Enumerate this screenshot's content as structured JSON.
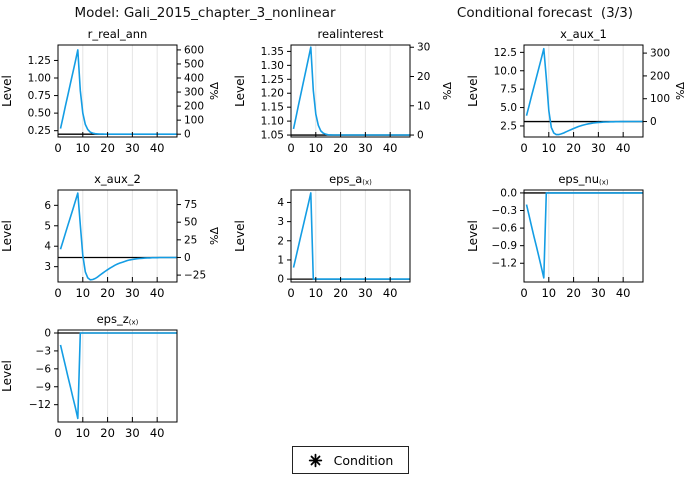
{
  "header": {
    "model_title": "Model: Gali_2015_chapter_3_nonlinear",
    "forecast_title": "Conditional forecast  (3/3)"
  },
  "legend": {
    "marker": "eight-spoke-star",
    "label": "Condition"
  },
  "style": {
    "series_color": "#149de4",
    "grid_color": "#e4e4e4",
    "axis_color": "#000000",
    "steady_state_color": "#000000",
    "background": "#ffffff",
    "text_color": "#000000"
  },
  "chart_data": [
    {
      "type": "line",
      "title": "r_real_ann",
      "title_sub": "",
      "ylabel": "Level",
      "right_ylabel": "%Δ",
      "x_start": 1,
      "xlim": [
        0,
        48
      ],
      "xticks": [
        0,
        10,
        20,
        30,
        40
      ],
      "ylim": [
        0.16,
        1.47
      ],
      "yticks": [
        0.25,
        0.5,
        0.75,
        1.0,
        1.25
      ],
      "ytick_labels": [
        "0.25",
        "0.50",
        "0.75",
        "1.00",
        "1.25"
      ],
      "right_ticks_pct": [
        0,
        100,
        200,
        300,
        400,
        500,
        600
      ],
      "right_tick_labels": [
        "0",
        "100",
        "200",
        "300",
        "400",
        "500",
        "600"
      ],
      "steady_state": 0.2,
      "values": [
        0.28,
        0.44,
        0.6,
        0.76,
        0.92,
        1.08,
        1.24,
        1.4,
        0.82,
        0.5,
        0.34,
        0.265,
        0.23,
        0.215,
        0.207,
        0.204,
        0.202,
        0.201,
        0.2,
        0.2,
        0.2,
        0.2,
        0.2,
        0.2,
        0.2,
        0.2,
        0.2,
        0.2,
        0.2,
        0.2,
        0.2,
        0.2,
        0.2,
        0.2,
        0.2,
        0.2,
        0.2,
        0.2,
        0.2,
        0.2,
        0.2,
        0.2,
        0.2,
        0.2,
        0.2,
        0.2,
        0.2,
        0.2
      ]
    },
    {
      "type": "line",
      "title": "realinterest",
      "title_sub": "",
      "ylabel": "Level",
      "right_ylabel": "%Δ",
      "x_start": 1,
      "xlim": [
        0,
        48
      ],
      "xticks": [
        0,
        10,
        20,
        30,
        40
      ],
      "ylim": [
        1.043,
        1.373
      ],
      "yticks": [
        1.05,
        1.1,
        1.15,
        1.2,
        1.25,
        1.3,
        1.35
      ],
      "ytick_labels": [
        "1.05",
        "1.10",
        "1.15",
        "1.20",
        "1.25",
        "1.30",
        "1.35"
      ],
      "right_ticks_pct": [
        0,
        10,
        20,
        30
      ],
      "right_tick_labels": [
        "0",
        "10",
        "20",
        "30"
      ],
      "steady_state": 1.05,
      "values": [
        1.072,
        1.114,
        1.156,
        1.198,
        1.24,
        1.282,
        1.324,
        1.365,
        1.21,
        1.125,
        1.085,
        1.065,
        1.057,
        1.053,
        1.051,
        1.0505,
        1.0502,
        1.0501,
        1.05,
        1.05,
        1.05,
        1.05,
        1.05,
        1.05,
        1.05,
        1.05,
        1.05,
        1.05,
        1.05,
        1.05,
        1.05,
        1.05,
        1.05,
        1.05,
        1.05,
        1.05,
        1.05,
        1.05,
        1.05,
        1.05,
        1.05,
        1.05,
        1.05,
        1.05,
        1.05,
        1.05,
        1.05,
        1.05
      ]
    },
    {
      "type": "line",
      "title": "x_aux_1",
      "title_sub": "",
      "ylabel": "Level",
      "right_ylabel": "%Δ",
      "x_start": 1,
      "xlim": [
        0,
        48
      ],
      "xticks": [
        0,
        10,
        20,
        30,
        40
      ],
      "ylim": [
        1.0,
        13.5
      ],
      "yticks": [
        2.5,
        5.0,
        7.5,
        10.0,
        12.5
      ],
      "ytick_labels": [
        "2.5",
        "5.0",
        "7.5",
        "10.0",
        "12.5"
      ],
      "right_ticks_pct": [
        0,
        100,
        200,
        300
      ],
      "right_tick_labels": [
        "0",
        "100",
        "200",
        "300"
      ],
      "steady_state": 3.1,
      "values": [
        3.9,
        5.2,
        6.5,
        7.8,
        9.1,
        10.4,
        11.7,
        13.0,
        9.0,
        4.6,
        2.3,
        1.55,
        1.32,
        1.33,
        1.42,
        1.55,
        1.7,
        1.86,
        2.01,
        2.16,
        2.29,
        2.42,
        2.53,
        2.63,
        2.71,
        2.79,
        2.85,
        2.9,
        2.94,
        2.98,
        3.0,
        3.02,
        3.04,
        3.05,
        3.06,
        3.07,
        3.08,
        3.08,
        3.09,
        3.09,
        3.09,
        3.1,
        3.1,
        3.1,
        3.1,
        3.1,
        3.1,
        3.1
      ]
    },
    {
      "type": "line",
      "title": "x_aux_2",
      "title_sub": "",
      "ylabel": "Level",
      "right_ylabel": "%Δ",
      "x_start": 1,
      "xlim": [
        0,
        48
      ],
      "xticks": [
        0,
        10,
        20,
        30,
        40
      ],
      "ylim": [
        2.25,
        6.75
      ],
      "yticks": [
        3,
        4,
        5,
        6
      ],
      "ytick_labels": [
        "3",
        "4",
        "5",
        "6"
      ],
      "right_ticks_pct": [
        -25,
        0,
        25,
        50,
        75
      ],
      "right_tick_labels": [
        "−25",
        "0",
        "25",
        "50",
        "75"
      ],
      "steady_state": 3.45,
      "values": [
        3.85,
        4.24,
        4.63,
        5.03,
        5.42,
        5.81,
        6.21,
        6.6,
        5.05,
        3.55,
        2.75,
        2.45,
        2.36,
        2.37,
        2.42,
        2.5,
        2.59,
        2.68,
        2.77,
        2.85,
        2.93,
        3.0,
        3.07,
        3.13,
        3.18,
        3.22,
        3.26,
        3.3,
        3.33,
        3.35,
        3.37,
        3.39,
        3.4,
        3.41,
        3.42,
        3.43,
        3.43,
        3.44,
        3.44,
        3.44,
        3.45,
        3.45,
        3.45,
        3.45,
        3.45,
        3.45,
        3.45,
        3.45
      ]
    },
    {
      "type": "line",
      "title": "eps_a",
      "title_sub": "(x)",
      "ylabel": "Level",
      "right_ylabel": null,
      "x_start": 1,
      "xlim": [
        0,
        48
      ],
      "xticks": [
        0,
        10,
        20,
        30,
        40
      ],
      "ylim": [
        -0.15,
        4.65
      ],
      "yticks": [
        0,
        1,
        2,
        3,
        4
      ],
      "ytick_labels": [
        "0",
        "1",
        "2",
        "3",
        "4"
      ],
      "right_ticks_pct": null,
      "right_tick_labels": null,
      "steady_state": 0,
      "values": [
        0.6,
        1.16,
        1.71,
        2.27,
        2.83,
        3.39,
        3.94,
        4.5,
        0,
        0,
        0,
        0,
        0,
        0,
        0,
        0,
        0,
        0,
        0,
        0,
        0,
        0,
        0,
        0,
        0,
        0,
        0,
        0,
        0,
        0,
        0,
        0,
        0,
        0,
        0,
        0,
        0,
        0,
        0,
        0,
        0,
        0,
        0,
        0,
        0,
        0,
        0,
        0
      ]
    },
    {
      "type": "line",
      "title": "eps_nu",
      "title_sub": "(x)",
      "ylabel": "Level",
      "right_ylabel": null,
      "x_start": 1,
      "xlim": [
        0,
        48
      ],
      "xticks": [
        0,
        10,
        20,
        30,
        40
      ],
      "ylim": [
        -1.52,
        0.05
      ],
      "yticks": [
        0.0,
        -0.3,
        -0.6,
        -0.9,
        -1.2
      ],
      "ytick_labels": [
        "0.0",
        "−0.3",
        "−0.6",
        "−0.9",
        "−1.2"
      ],
      "right_ticks_pct": null,
      "right_tick_labels": null,
      "steady_state": 0,
      "values": [
        -0.2,
        -0.38,
        -0.56,
        -0.74,
        -0.91,
        -1.09,
        -1.27,
        -1.45,
        0,
        0,
        0,
        0,
        0,
        0,
        0,
        0,
        0,
        0,
        0,
        0,
        0,
        0,
        0,
        0,
        0,
        0,
        0,
        0,
        0,
        0,
        0,
        0,
        0,
        0,
        0,
        0,
        0,
        0,
        0,
        0,
        0,
        0,
        0,
        0,
        0,
        0,
        0,
        0
      ]
    },
    {
      "type": "line",
      "title": "eps_z",
      "title_sub": "(x)",
      "ylabel": "Level",
      "right_ylabel": null,
      "x_start": 1,
      "xlim": [
        0,
        48
      ],
      "xticks": [
        0,
        10,
        20,
        30,
        40
      ],
      "ylim": [
        -14.9,
        0.5
      ],
      "yticks": [
        0,
        -3,
        -6,
        -9,
        -12
      ],
      "ytick_labels": [
        "0",
        "−3",
        "−6",
        "−9",
        "−12"
      ],
      "right_ticks_pct": null,
      "right_tick_labels": null,
      "steady_state": 0,
      "values": [
        -2.0,
        -3.8,
        -5.5,
        -7.3,
        -9.0,
        -10.8,
        -12.5,
        -14.3,
        0,
        0,
        0,
        0,
        0,
        0,
        0,
        0,
        0,
        0,
        0,
        0,
        0,
        0,
        0,
        0,
        0,
        0,
        0,
        0,
        0,
        0,
        0,
        0,
        0,
        0,
        0,
        0,
        0,
        0,
        0,
        0,
        0,
        0,
        0,
        0,
        0,
        0,
        0,
        0
      ]
    }
  ]
}
